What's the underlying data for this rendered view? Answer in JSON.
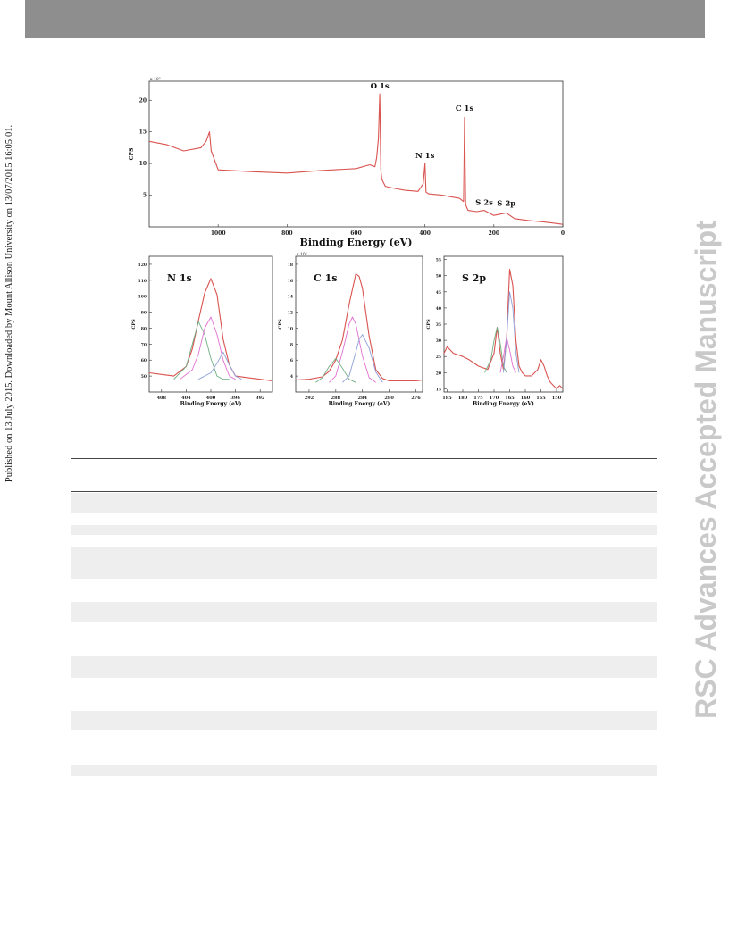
{
  "page": {
    "side_note": "Published on 13 July 2015. Downloaded by Mount Allison University on 13/07/2015 16:05:01.",
    "watermark": "RSC Advances Accepted Manuscript"
  },
  "colors": {
    "curve": "#d9534f",
    "accent_pink": "#e06fd0",
    "accent_blue": "#8da0d8",
    "accent_green": "#6fae84",
    "header_bar": "#8e8e8e",
    "watermark": "#c9c9c9"
  },
  "chart_data": [
    {
      "type": "line",
      "panel": "survey",
      "title": "",
      "xlabel": "Binding Energy (eV)",
      "ylabel": "CPS",
      "y_multiplier": "x 10³",
      "xlim": [
        1200,
        0
      ],
      "ylim": [
        0,
        23
      ],
      "x_ticks": [
        "1000",
        "800",
        "600",
        "400",
        "200",
        "0"
      ],
      "y_ticks": [
        "5",
        "10",
        "15",
        "20"
      ],
      "peak_labels": [
        {
          "text": "O 1s",
          "x": 531,
          "y": 21
        },
        {
          "text": "N 1s",
          "x": 400,
          "y": 10
        },
        {
          "text": "C 1s",
          "x": 285,
          "y": 17.5
        },
        {
          "text": "S 2s",
          "x": 228,
          "y": 2.6
        },
        {
          "text": "S 2p",
          "x": 164,
          "y": 2.5
        }
      ],
      "series": [
        {
          "x": [
            1200,
            1150,
            1100,
            1050,
            1035,
            1025,
            1020,
            1000,
            900,
            800,
            700,
            600,
            560,
            545,
            540,
            535,
            531,
            528,
            525,
            515,
            500,
            480,
            460,
            420,
            405,
            400,
            397,
            390,
            350,
            300,
            288,
            285,
            282,
            275,
            250,
            228,
            200,
            164,
            140,
            100,
            60,
            30,
            0
          ],
          "values": [
            13.5,
            13,
            12,
            12.5,
            13.5,
            15,
            12,
            9,
            8.7,
            8.5,
            8.9,
            9.2,
            9.8,
            9.5,
            11,
            14,
            21,
            9,
            7.5,
            6.4,
            6.2,
            6.0,
            5.8,
            5.6,
            6.8,
            10,
            5.5,
            5.2,
            5.0,
            4.5,
            4.0,
            17.3,
            3.5,
            2.6,
            2.4,
            2.6,
            1.8,
            2.2,
            1.3,
            1.0,
            0.8,
            0.6,
            0.4
          ]
        }
      ]
    },
    {
      "type": "line",
      "panel": "N 1s",
      "title": "N 1s",
      "xlabel": "Binding Energy (eV)",
      "ylabel": "CPS",
      "xlim": [
        410,
        390
      ],
      "ylim": [
        40,
        125
      ],
      "x_ticks": [
        "408",
        "404",
        "400",
        "396",
        "392"
      ],
      "y_ticks": [
        "50",
        "60",
        "70",
        "80",
        "90",
        "100",
        "110",
        "120"
      ],
      "series": [
        {
          "name": "",
          "x": [
            410,
            408,
            406,
            404,
            403,
            402,
            401,
            400,
            399,
            398,
            397,
            396,
            394,
            392,
            390
          ],
          "values": [
            52,
            51,
            50,
            56,
            67,
            85,
            102,
            111,
            101,
            73,
            57,
            50,
            49,
            48,
            47
          ]
        },
        {
          "name": "",
          "x": [
            406,
            404,
            403,
            402,
            401,
            400,
            399,
            398,
            397
          ],
          "values": [
            48,
            56,
            70,
            84,
            76,
            61,
            50,
            48,
            48
          ]
        },
        {
          "name": "",
          "x": [
            405,
            403,
            402,
            401,
            400,
            399,
            398,
            397,
            396
          ],
          "values": [
            48,
            54,
            64,
            80,
            87,
            76,
            60,
            50,
            48
          ]
        },
        {
          "name": "",
          "x": [
            402,
            400,
            399,
            398,
            397,
            396,
            395
          ],
          "values": [
            48,
            52,
            58,
            65,
            57,
            50,
            48
          ]
        }
      ]
    },
    {
      "type": "line",
      "panel": "C 1s",
      "title": "C 1s",
      "xlabel": "Binding Energy (eV)",
      "ylabel": "CPS",
      "y_multiplier": "x 10³",
      "xlim": [
        294,
        275
      ],
      "ylim": [
        2,
        19
      ],
      "x_ticks": [
        "292",
        "288",
        "284",
        "280",
        "276"
      ],
      "y_ticks": [
        "4",
        "6",
        "8",
        "10",
        "12",
        "14",
        "16",
        "18"
      ],
      "series": [
        {
          "name": "",
          "x": [
            294,
            292,
            290,
            289,
            288,
            287,
            286,
            285,
            284.5,
            284,
            283,
            282,
            281,
            280,
            278,
            276,
            275
          ],
          "values": [
            3.5,
            3.6,
            3.9,
            4.6,
            6,
            8.5,
            13,
            16.8,
            16.5,
            15,
            9,
            4.8,
            3.7,
            3.4,
            3.4,
            3.4,
            3.5
          ]
        },
        {
          "name": "",
          "x": [
            291,
            290,
            289,
            288,
            287,
            286,
            285
          ],
          "values": [
            3.2,
            3.8,
            5.2,
            6.2,
            5,
            3.6,
            3.2
          ]
        },
        {
          "name": "",
          "x": [
            289,
            288,
            287,
            286,
            285.5,
            285,
            284,
            283,
            282
          ],
          "values": [
            3.2,
            4,
            7,
            10.5,
            11.4,
            10.5,
            6.5,
            3.8,
            3.2
          ]
        },
        {
          "name": "",
          "x": [
            287,
            286,
            285,
            284.5,
            284,
            283,
            282,
            281
          ],
          "values": [
            3.2,
            4,
            7,
            8.6,
            9.2,
            7.5,
            4.5,
            3.2
          ]
        }
      ]
    },
    {
      "type": "line",
      "panel": "S 2p",
      "title": "S 2p",
      "xlabel": "Binding Energy (eV)",
      "ylabel": "CPS",
      "xlim": [
        186,
        148
      ],
      "ylim": [
        14,
        56
      ],
      "x_ticks": [
        "185",
        "180",
        "175",
        "170",
        "165",
        "160",
        "155",
        "150"
      ],
      "y_ticks": [
        "15",
        "20",
        "25",
        "30",
        "35",
        "40",
        "45",
        "50",
        "55"
      ],
      "series": [
        {
          "name": "",
          "x": [
            186,
            185,
            183,
            180,
            178,
            175,
            172,
            170,
            169,
            168,
            167,
            166,
            165,
            164,
            163,
            162,
            161,
            160,
            158,
            156,
            155,
            154,
            153,
            152,
            151,
            150,
            149,
            148
          ],
          "values": [
            26,
            28,
            26,
            25,
            24,
            22,
            21,
            26,
            34,
            26,
            21,
            30,
            52,
            47,
            30,
            22,
            20,
            19,
            19,
            21,
            24,
            22,
            19,
            17,
            16,
            15,
            16,
            15
          ]
        },
        {
          "name": "",
          "x": [
            173,
            171,
            170,
            169,
            168,
            167,
            166
          ],
          "values": [
            20,
            24,
            30,
            34,
            29,
            22,
            20
          ]
        },
        {
          "name": "",
          "x": [
            168,
            167,
            166,
            165,
            164,
            163
          ],
          "values": [
            20,
            25,
            31,
            27,
            22,
            20
          ]
        },
        {
          "name": "",
          "x": [
            167,
            166,
            165,
            164,
            163,
            162
          ],
          "values": [
            20,
            30,
            45,
            40,
            26,
            20
          ]
        }
      ]
    }
  ]
}
